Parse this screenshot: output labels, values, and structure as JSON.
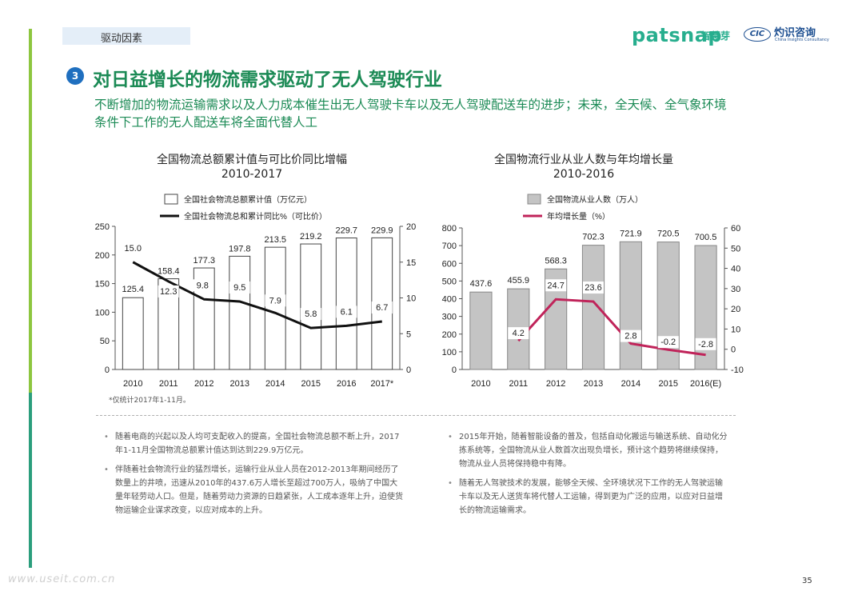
{
  "header": {
    "section_tag": "驱动因素",
    "logo1_en": "patsnap",
    "logo1_cn": "智慧芽",
    "logo2_mark": "CIC",
    "logo2_cn": "灼识咨询",
    "logo2_en": "China Insights Consultancy"
  },
  "slide": {
    "number": "3",
    "title": "对日益增长的物流需求驱动了无人驾驶行业",
    "subtitle": "不断增加的物流运输需求以及人力成本催生出无人驾驶卡车以及无人驾驶配送车的进步；未来，全天候、全气象环境条件下工作的无人配送车将全面代替人工"
  },
  "colors": {
    "green": "#1b8a55",
    "accent_blue": "#1f6fbf",
    "line_black": "#111111",
    "line_red": "#c0245a",
    "bar_gray": "#c4c4c4"
  },
  "chart_data": [
    {
      "type": "bar",
      "title": "全国物流总额累计值与可比价同比增幅",
      "subtitle": "2010-2017",
      "categories": [
        "2010",
        "2011",
        "2012",
        "2013",
        "2014",
        "2015",
        "2016",
        "2017*"
      ],
      "series": [
        {
          "name": "全国社会物流总额累计值（万亿元）",
          "type": "bar",
          "axis": "left",
          "values": [
            125.4,
            158.4,
            177.3,
            197.8,
            213.5,
            219.2,
            229.7,
            229.9
          ],
          "labels": [
            "125.4",
            "158.4",
            "177.3",
            "197.8",
            "213.5",
            "219.2",
            "229.7",
            "229.9"
          ]
        },
        {
          "name": "全国社会物流总和累计同比%（可比价）",
          "type": "line",
          "axis": "right",
          "values": [
            15.0,
            12.3,
            9.8,
            9.5,
            7.9,
            5.8,
            6.1,
            6.7
          ],
          "labels": [
            "15.0",
            "12.3",
            "9.8",
            "9.5",
            "7.9",
            "5.8",
            "6.1",
            "6.7"
          ]
        }
      ],
      "ylim_left": [
        0,
        250
      ],
      "yticks_left": [
        "0",
        "50",
        "100",
        "150",
        "200",
        "250"
      ],
      "ylim_right": [
        0,
        20
      ],
      "yticks_right": [
        "0",
        "5",
        "10",
        "15",
        "20"
      ],
      "legend_position": "top-center",
      "grid": false,
      "footnote": "*仅统计2017年1-11月。"
    },
    {
      "type": "bar",
      "title": "全国物流行业从业人数与年均增长量",
      "subtitle": "2010-2016",
      "categories": [
        "2010",
        "2011",
        "2012",
        "2013",
        "2014",
        "2015",
        "2016(E)"
      ],
      "series": [
        {
          "name": "全国物流从业人数（万人）",
          "type": "bar",
          "axis": "left",
          "values": [
            437.6,
            455.9,
            568.3,
            702.3,
            721.9,
            720.5,
            700.5
          ],
          "labels": [
            "437.6",
            "455.9",
            "568.3",
            "702.3",
            "721.9",
            "720.5",
            "700.5"
          ]
        },
        {
          "name": "年均增长量（%）",
          "type": "line",
          "axis": "right",
          "values": [
            null,
            4.2,
            24.7,
            23.6,
            2.8,
            -0.2,
            -2.8
          ],
          "labels": [
            "",
            "4.2",
            "24.7",
            "23.6",
            "2.8",
            "-0.2",
            "-2.8"
          ]
        }
      ],
      "ylim_left": [
        0,
        800
      ],
      "yticks_left": [
        "0",
        "100",
        "200",
        "300",
        "400",
        "500",
        "600",
        "700",
        "800"
      ],
      "ylim_right": [
        -10,
        60
      ],
      "yticks_right": [
        "-10",
        "0",
        "10",
        "20",
        "30",
        "40",
        "50",
        "60"
      ],
      "legend_position": "top-center",
      "grid": false
    }
  ],
  "bullets_left": [
    "随着电商的兴起以及人均可支配收入的提高，全国社会物流总额不断上升，2017年1-11月全国物流总额累计值达到达到229.9万亿元。",
    "伴随着社会物流行业的猛烈增长，运输行业从业人员在2012-2013年期间经历了数量上的井喷，迅速从2010年的437.6万人增长至超过700万人，吸纳了中国大量年轻劳动人口。但是，随着劳动力资源的日趋紧张，人工成本逐年上升，迫使货物运输企业谋求改变，以应对成本的上升。"
  ],
  "bullets_right": [
    "2015年开始，随着智能设备的普及，包括自动化搬运与输送系统、自动化分拣系统等，全国物流从业人数首次出现负增长，预计这个趋势将继续保持，物流从业人员将保持稳中有降。",
    "随着无人驾驶技术的发展，能够全天候、全环境状况下工作的无人驾驶运输卡车以及无人送货车将代替人工运输，得到更为广泛的应用，以应对日益增长的物流运输需求。"
  ],
  "footer": {
    "watermark": "www.useit.com.cn",
    "page_number": "35"
  }
}
